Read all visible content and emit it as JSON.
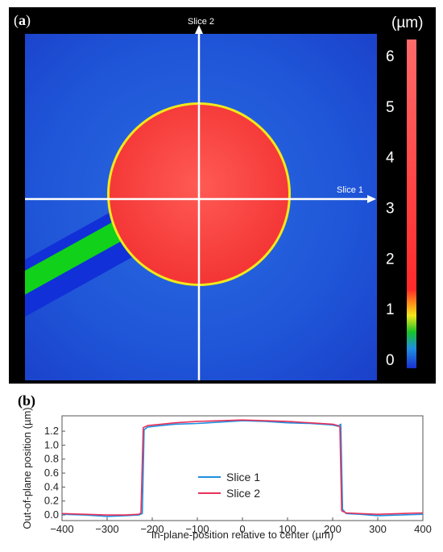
{
  "panel_a": {
    "label_open": "(",
    "label_letter": "a",
    "label_close": ")",
    "unit": "(µm)",
    "slice1_label": "Slice 1",
    "slice2_label": "Slice 2",
    "colorbar_ticks": [
      "0",
      "1",
      "2",
      "3",
      "4",
      "5",
      "6"
    ],
    "colors": {
      "background": "#1f4fd8",
      "pad": "#ff3b3b",
      "electrode": "#11d11a",
      "edge": "#f2e81a",
      "frame": "#000000",
      "slice_lines": "#ffffff"
    }
  },
  "panel_b": {
    "label": "(b)",
    "chart_data": {
      "type": "line",
      "xlabel": "In-plane-position relative to center (µm)",
      "ylabel": "Out-of-plane position (µm)",
      "xlim": [
        -400,
        400
      ],
      "ylim": [
        -0.08,
        1.42
      ],
      "xticks": [
        -400,
        -300,
        -200,
        -100,
        0,
        100,
        200,
        300,
        400
      ],
      "yticks": [
        0.0,
        0.2,
        0.4,
        0.6,
        0.8,
        1.0,
        1.2
      ],
      "ytick_labels": [
        "0.0",
        "0.2",
        "0.4",
        "0.6",
        "0.8",
        "1.0",
        "1.2"
      ],
      "legend_position": "lower-center",
      "series": [
        {
          "name": "Slice 1",
          "color": "#1f8fe0",
          "x": [
            -400,
            -350,
            -300,
            -260,
            -230,
            -222,
            -218,
            -210,
            -180,
            -150,
            -100,
            -50,
            0,
            50,
            100,
            150,
            200,
            212,
            218,
            222,
            230,
            260,
            300,
            350,
            400
          ],
          "y": [
            0.01,
            0.0,
            -0.02,
            -0.01,
            0.0,
            0.02,
            1.22,
            1.26,
            1.28,
            1.3,
            1.31,
            1.33,
            1.35,
            1.34,
            1.32,
            1.31,
            1.29,
            1.27,
            1.3,
            0.08,
            0.02,
            0.01,
            -0.01,
            0.0,
            0.01
          ]
        },
        {
          "name": "Slice 2",
          "color": "#e8315a",
          "x": [
            -400,
            -350,
            -300,
            -260,
            -230,
            -225,
            -220,
            -210,
            -180,
            -150,
            -100,
            -50,
            0,
            50,
            100,
            150,
            200,
            212,
            216,
            220,
            230,
            260,
            300,
            350,
            400
          ],
          "y": [
            0.02,
            0.01,
            0.0,
            0.0,
            0.01,
            0.03,
            1.25,
            1.28,
            1.3,
            1.32,
            1.34,
            1.35,
            1.36,
            1.35,
            1.34,
            1.32,
            1.3,
            1.28,
            1.26,
            0.06,
            0.03,
            0.02,
            0.01,
            0.02,
            0.03
          ]
        }
      ]
    }
  }
}
